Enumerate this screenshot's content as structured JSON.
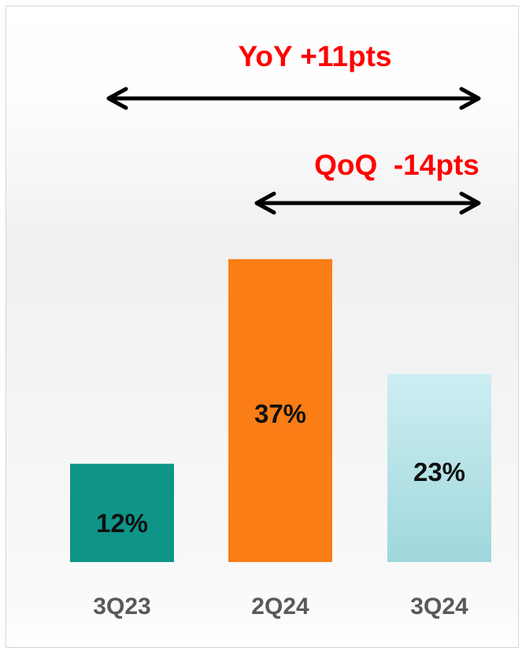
{
  "chart_data": {
    "type": "bar",
    "categories": [
      "3Q23",
      "2Q24",
      "3Q24"
    ],
    "values": [
      12,
      37,
      23
    ],
    "data_labels": [
      "12%",
      "37%",
      "23%"
    ],
    "unit": "%",
    "colors": [
      "#0f9488",
      "#fa7d15",
      "#c4e9ee"
    ],
    "annotations": [
      {
        "text": "YoY +11pts",
        "from": "3Q23",
        "to": "3Q24",
        "color": "#ff0000"
      },
      {
        "text": "QoQ  -14pts",
        "from": "2Q24",
        "to": "3Q24",
        "color": "#ff0000"
      }
    ],
    "grid": false,
    "legend": "none"
  }
}
